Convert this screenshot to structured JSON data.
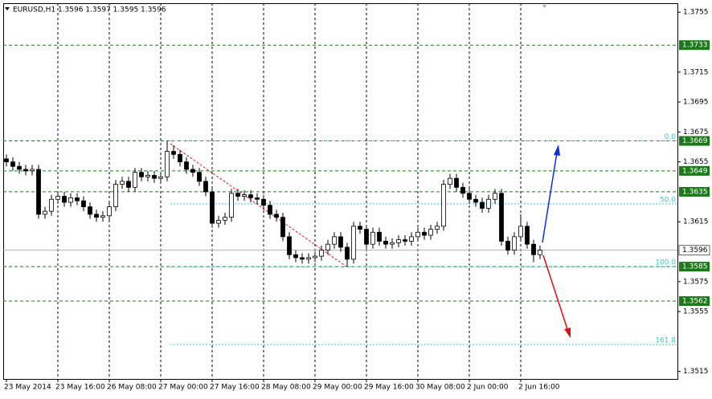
{
  "chart_data": {
    "type": "candlestick",
    "title": "EURUSD,H1  1.3596 1.3597 1.3595 1.3596",
    "categories": [
      "23 May 2014",
      null,
      null,
      null,
      null,
      null,
      null,
      null,
      "23 May 16:00",
      null,
      null,
      null,
      null,
      null,
      null,
      null,
      "26 May 08:00",
      null,
      null,
      null,
      null,
      null,
      null,
      null,
      "27 May 00:00",
      null,
      null,
      null,
      null,
      null,
      null,
      null,
      "27 May 16:00",
      null,
      null,
      null,
      null,
      null,
      null,
      null,
      "28 May 08:00",
      null,
      null,
      null,
      null,
      null,
      null,
      null,
      "29 May 00:00",
      null,
      null,
      null,
      null,
      null,
      null,
      null,
      "29 May 16:00",
      null,
      null,
      null,
      null,
      null,
      null,
      null,
      "30 May 08:00",
      null,
      null,
      null,
      null,
      null,
      null,
      null,
      "2 Jun 00:00",
      null,
      null,
      null,
      null,
      null,
      null,
      null,
      "2 Jun 16:00",
      null,
      null,
      null
    ],
    "ohlc": [
      [
        1.3657,
        1.366,
        1.3652,
        1.3655
      ],
      [
        1.3655,
        1.3658,
        1.3649,
        1.3652
      ],
      [
        1.3652,
        1.3655,
        1.3647,
        1.365
      ],
      [
        1.365,
        1.3653,
        1.3646,
        1.3649
      ],
      [
        1.3649,
        1.3653,
        1.3646,
        1.365
      ],
      [
        1.365,
        1.3653,
        1.3617,
        1.362
      ],
      [
        1.362,
        1.3625,
        1.3617,
        1.3622
      ],
      [
        1.3622,
        1.3633,
        1.3619,
        1.363
      ],
      [
        1.363,
        1.3635,
        1.3627,
        1.3632
      ],
      [
        1.3632,
        1.3635,
        1.3625,
        1.3628
      ],
      [
        1.3628,
        1.3634,
        1.3625,
        1.3631
      ],
      [
        1.3631,
        1.3634,
        1.3626,
        1.3629
      ],
      [
        1.3629,
        1.3632,
        1.3622,
        1.3625
      ],
      [
        1.3625,
        1.3628,
        1.3617,
        1.362
      ],
      [
        1.362,
        1.3623,
        1.3615,
        1.3618
      ],
      [
        1.3618,
        1.3622,
        1.3615,
        1.3619
      ],
      [
        1.3619,
        1.3628,
        1.3616,
        1.3625
      ],
      [
        1.3625,
        1.3643,
        1.3622,
        1.364
      ],
      [
        1.364,
        1.3645,
        1.3637,
        1.3642
      ],
      [
        1.3642,
        1.3645,
        1.3635,
        1.3638
      ],
      [
        1.3638,
        1.3651,
        1.3635,
        1.3648
      ],
      [
        1.3648,
        1.3651,
        1.3642,
        1.3645
      ],
      [
        1.3645,
        1.3649,
        1.3642,
        1.3646
      ],
      [
        1.3646,
        1.3649,
        1.3641,
        1.3644
      ],
      [
        1.3644,
        1.3648,
        1.3641,
        1.3645
      ],
      [
        1.3645,
        1.3669,
        1.3642,
        1.3662
      ],
      [
        1.3662,
        1.3666,
        1.3657,
        1.366
      ],
      [
        1.366,
        1.3663,
        1.3652,
        1.3655
      ],
      [
        1.3655,
        1.3658,
        1.3647,
        1.365
      ],
      [
        1.365,
        1.3653,
        1.3645,
        1.3648
      ],
      [
        1.3648,
        1.3651,
        1.3639,
        1.3642
      ],
      [
        1.3642,
        1.3645,
        1.3632,
        1.3635
      ],
      [
        1.3635,
        1.3638,
        1.3611,
        1.3614
      ],
      [
        1.3614,
        1.3619,
        1.3611,
        1.3616
      ],
      [
        1.3616,
        1.3621,
        1.3613,
        1.3618
      ],
      [
        1.3618,
        1.3637,
        1.3615,
        1.3634
      ],
      [
        1.3634,
        1.3637,
        1.3629,
        1.3632
      ],
      [
        1.3632,
        1.3636,
        1.3629,
        1.3633
      ],
      [
        1.3633,
        1.3636,
        1.3628,
        1.3631
      ],
      [
        1.3631,
        1.3634,
        1.3627,
        1.363
      ],
      [
        1.363,
        1.3633,
        1.3623,
        1.3626
      ],
      [
        1.3626,
        1.3629,
        1.3617,
        1.362
      ],
      [
        1.362,
        1.3623,
        1.3615,
        1.3618
      ],
      [
        1.3618,
        1.3621,
        1.3602,
        1.3605
      ],
      [
        1.3605,
        1.3608,
        1.359,
        1.3593
      ],
      [
        1.3593,
        1.3596,
        1.3588,
        1.3591
      ],
      [
        1.3591,
        1.3594,
        1.3587,
        1.359
      ],
      [
        1.359,
        1.3594,
        1.3587,
        1.3591
      ],
      [
        1.3591,
        1.3595,
        1.3588,
        1.3592
      ],
      [
        1.3592,
        1.3599,
        1.3589,
        1.3596
      ],
      [
        1.3596,
        1.3603,
        1.3593,
        1.36
      ],
      [
        1.36,
        1.3608,
        1.3597,
        1.3605
      ],
      [
        1.3605,
        1.3608,
        1.3595,
        1.3598
      ],
      [
        1.3598,
        1.3601,
        1.3585,
        1.359
      ],
      [
        1.359,
        1.3615,
        1.3587,
        1.3612
      ],
      [
        1.3612,
        1.3615,
        1.3607,
        1.361
      ],
      [
        1.361,
        1.3613,
        1.3597,
        1.36
      ],
      [
        1.36,
        1.3611,
        1.3597,
        1.3608
      ],
      [
        1.3608,
        1.3611,
        1.3599,
        1.3602
      ],
      [
        1.3602,
        1.3605,
        1.3597,
        1.36
      ],
      [
        1.36,
        1.3604,
        1.3597,
        1.3601
      ],
      [
        1.3601,
        1.3606,
        1.3598,
        1.3603
      ],
      [
        1.3603,
        1.3606,
        1.3599,
        1.3602
      ],
      [
        1.3602,
        1.3608,
        1.3599,
        1.3605
      ],
      [
        1.3605,
        1.3611,
        1.3602,
        1.3608
      ],
      [
        1.3608,
        1.3611,
        1.3603,
        1.3606
      ],
      [
        1.3606,
        1.3613,
        1.3603,
        1.361
      ],
      [
        1.361,
        1.3615,
        1.3607,
        1.3612
      ],
      [
        1.3612,
        1.3643,
        1.3609,
        1.364
      ],
      [
        1.364,
        1.3647,
        1.3637,
        1.3644
      ],
      [
        1.3644,
        1.3647,
        1.3635,
        1.3638
      ],
      [
        1.3638,
        1.3641,
        1.3631,
        1.3634
      ],
      [
        1.3634,
        1.3637,
        1.3627,
        1.363
      ],
      [
        1.363,
        1.3633,
        1.3625,
        1.3628
      ],
      [
        1.3628,
        1.3631,
        1.3621,
        1.3624
      ],
      [
        1.3624,
        1.3633,
        1.3621,
        1.363
      ],
      [
        1.363,
        1.3637,
        1.3627,
        1.3634
      ],
      [
        1.3634,
        1.3637,
        1.3599,
        1.3602
      ],
      [
        1.3602,
        1.3605,
        1.3593,
        1.3596
      ],
      [
        1.3596,
        1.3608,
        1.3593,
        1.3605
      ],
      [
        1.3605,
        1.362,
        1.3602,
        1.3612
      ],
      [
        1.3612,
        1.3615,
        1.3597,
        1.36
      ],
      [
        1.36,
        1.3603,
        1.3588,
        1.3593
      ],
      [
        1.3593,
        1.3599,
        1.359,
        1.3596
      ]
    ],
    "ylim": [
      1.351,
      1.3761
    ],
    "yticks": [
      1.3755,
      1.3715,
      1.3695,
      1.3675,
      1.3655,
      1.3615,
      1.3575,
      1.3555,
      1.3515
    ],
    "levels": [
      1.3733,
      1.3669,
      1.3649,
      1.3635,
      1.3585,
      1.3562
    ],
    "level_color": "#1a7a1a",
    "current_price": 1.3596,
    "fib": {
      "levels": [
        {
          "value": 0,
          "label": "0.0"
        },
        {
          "value": 50,
          "label": "50.0"
        },
        {
          "value": 100,
          "label": "100.0"
        },
        {
          "value": 161.8,
          "label": "161.8"
        }
      ],
      "prices": [
        1.3669,
        1.3627,
        1.3585,
        1.3533
      ],
      "color": "#3cc6c8"
    },
    "grid": true
  }
}
